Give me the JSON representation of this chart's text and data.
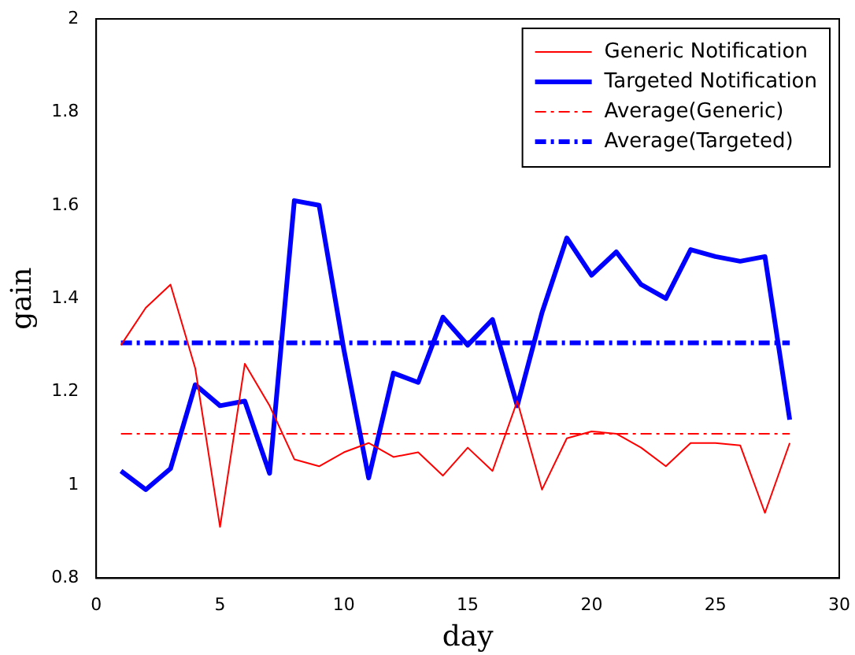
{
  "chart_data": {
    "type": "line",
    "xlabel": "day",
    "ylabel": "gain",
    "x": [
      1,
      2,
      3,
      4,
      5,
      6,
      7,
      8,
      9,
      10,
      11,
      12,
      13,
      14,
      15,
      16,
      17,
      18,
      19,
      20,
      21,
      22,
      23,
      24,
      25,
      26,
      27,
      28
    ],
    "series": [
      {
        "name": "Generic Notification",
        "color": "#ff0000",
        "line_style": "solid",
        "values": [
          1.3,
          1.38,
          1.43,
          1.25,
          0.91,
          1.26,
          1.17,
          1.055,
          1.04,
          1.07,
          1.09,
          1.06,
          1.07,
          1.02,
          1.08,
          1.03,
          1.18,
          0.99,
          1.1,
          1.115,
          1.11,
          1.08,
          1.04,
          1.09,
          1.09,
          1.085,
          0.94,
          1.09
        ]
      },
      {
        "name": "Targeted Notification",
        "color": "#0000ff",
        "line_style": "solid",
        "values": [
          1.03,
          0.99,
          1.035,
          1.215,
          1.17,
          1.18,
          1.025,
          1.61,
          1.6,
          1.29,
          1.015,
          1.24,
          1.22,
          1.36,
          1.3,
          1.355,
          1.17,
          1.37,
          1.53,
          1.45,
          1.5,
          1.43,
          1.4,
          1.505,
          1.49,
          1.48,
          1.49,
          1.14
        ]
      },
      {
        "name": "Average(Generic)",
        "color": "#ff0000",
        "line_style": "dashed",
        "values": [
          1.11,
          1.11,
          1.11,
          1.11,
          1.11,
          1.11,
          1.11,
          1.11,
          1.11,
          1.11,
          1.11,
          1.11,
          1.11,
          1.11,
          1.11,
          1.11,
          1.11,
          1.11,
          1.11,
          1.11,
          1.11,
          1.11,
          1.11,
          1.11,
          1.11,
          1.11,
          1.11,
          1.11
        ]
      },
      {
        "name": "Average(Targeted)",
        "color": "#0000ff",
        "line_style": "dashed",
        "values": [
          1.305,
          1.305,
          1.305,
          1.305,
          1.305,
          1.305,
          1.305,
          1.305,
          1.305,
          1.305,
          1.305,
          1.305,
          1.305,
          1.305,
          1.305,
          1.305,
          1.305,
          1.305,
          1.305,
          1.305,
          1.305,
          1.305,
          1.305,
          1.305,
          1.305,
          1.305,
          1.305,
          1.305
        ]
      }
    ],
    "xlim": [
      0,
      30
    ],
    "xticks": [
      0,
      5,
      10,
      15,
      20,
      25,
      30
    ],
    "ylim": [
      0.8,
      2.0
    ],
    "yticks": [
      0.8,
      1.0,
      1.2,
      1.4,
      1.6,
      1.8,
      2.0
    ],
    "grid": false,
    "legend": "top right",
    "marker": "none"
  }
}
